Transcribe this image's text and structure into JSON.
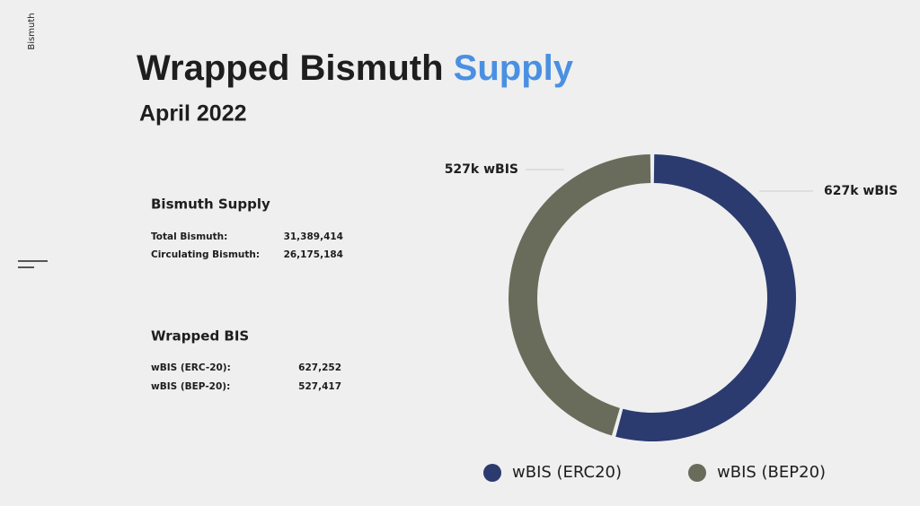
{
  "brand": "Bismuth",
  "title": {
    "main": "Wrapped Bismuth",
    "highlight": "Supply"
  },
  "subtitle": "April 2022",
  "sections": [
    {
      "heading": "Bismuth Supply",
      "rows": [
        [
          "Total Bismuth:",
          "31,389,414"
        ],
        [
          "Circulating Bismuth:",
          "26,175,184"
        ]
      ]
    },
    {
      "heading": "Wrapped BIS",
      "rows": [
        [
          "wBIS (ERC-20):",
          "627,252"
        ],
        [
          "wBIS (BEP-20):",
          "527,417"
        ]
      ]
    }
  ],
  "chart_data": {
    "type": "donut",
    "categories": [
      "wBIS (ERC20)",
      "wBIS (BEP20)"
    ],
    "values": [
      627252,
      527417
    ],
    "value_labels": [
      "627k wBIS",
      "527k wBIS"
    ],
    "colors": [
      "#2b3b6f",
      "#6a6c5b"
    ]
  }
}
